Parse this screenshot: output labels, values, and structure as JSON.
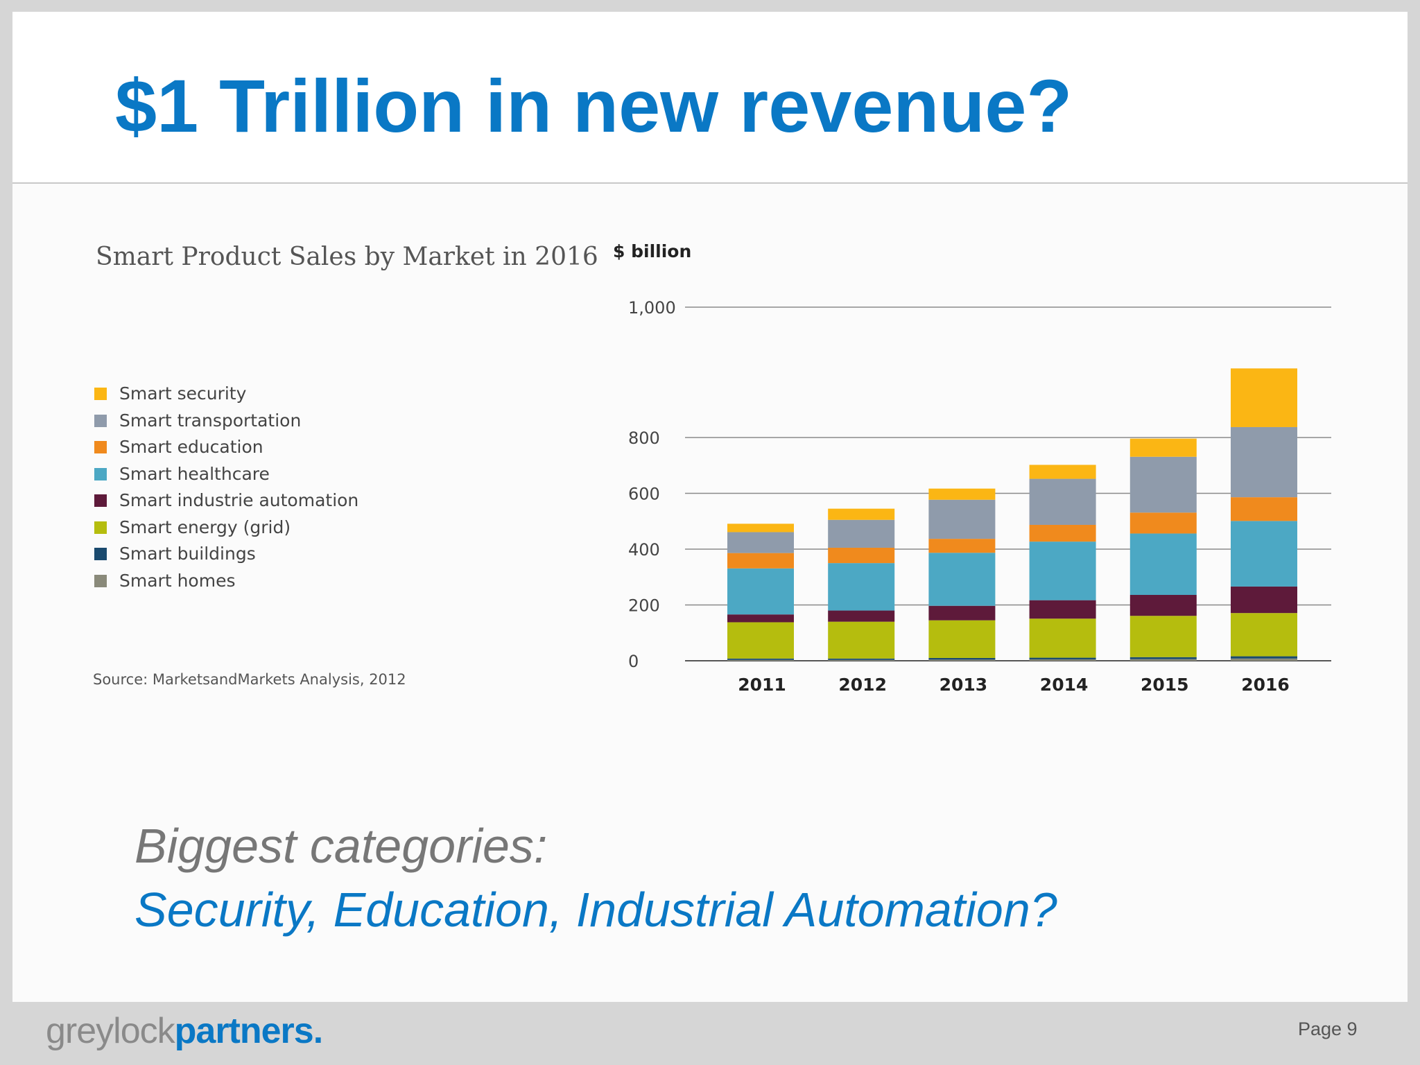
{
  "slide": {
    "title": "$1 Trillion in new revenue?",
    "bullets": {
      "heading": "Biggest categories:",
      "body": "Security, Education, Industrial Automation?"
    }
  },
  "footer": {
    "logo_part1": "greylock",
    "logo_part2": "partners.",
    "page": "Page 9"
  },
  "chart_data": {
    "type": "bar",
    "stacked": true,
    "title": "Smart Product Sales by Market in 2016",
    "ylabel": "$ billion",
    "xlabel": "",
    "source": "Source: MarketsandMarkets Analysis, 2012",
    "categories": [
      "2011",
      "2012",
      "2013",
      "2014",
      "2015",
      "2016"
    ],
    "y_ticks": [
      0,
      200,
      400,
      600,
      800,
      1000
    ],
    "y_tick_labels": [
      "0",
      "200",
      "400",
      "600",
      "800",
      "1,000"
    ],
    "axis_scale": "non-linear: 0–800 evenly spaced per 200; 800–1,000 band drawn taller",
    "legend_position": "left",
    "series": [
      {
        "name": "Smart homes",
        "color": "#8a8a7a",
        "values": [
          3,
          3,
          4,
          5,
          6,
          8
        ]
      },
      {
        "name": "Smart buildings",
        "color": "#1a4a6e",
        "values": [
          5,
          5,
          6,
          6,
          7,
          8
        ]
      },
      {
        "name": "Smart energy (grid)",
        "color": "#b5bd0e",
        "values": [
          130,
          132,
          135,
          140,
          148,
          155
        ]
      },
      {
        "name": "Smart industrie automation",
        "color": "#5e1a3a",
        "values": [
          28,
          40,
          52,
          66,
          75,
          95
        ]
      },
      {
        "name": "Smart healthcare",
        "color": "#4ca8c4",
        "values": [
          165,
          170,
          190,
          210,
          220,
          235
        ]
      },
      {
        "name": "Smart education",
        "color": "#f08a1d",
        "values": [
          55,
          55,
          50,
          60,
          75,
          85
        ]
      },
      {
        "name": "Smart transportation",
        "color": "#8f9bab",
        "values": [
          75,
          100,
          140,
          165,
          200,
          230
        ]
      },
      {
        "name": "Smart security",
        "color": "#fbb614",
        "values": [
          30,
          40,
          40,
          50,
          65,
          90
        ]
      }
    ],
    "legend_order": [
      "Smart security",
      "Smart transportation",
      "Smart education",
      "Smart healthcare",
      "Smart industrie automation",
      "Smart energy (grid)",
      "Smart buildings",
      "Smart homes"
    ],
    "grid": true,
    "grid_lines_at": [
      200,
      400,
      600,
      800,
      1000
    ]
  }
}
